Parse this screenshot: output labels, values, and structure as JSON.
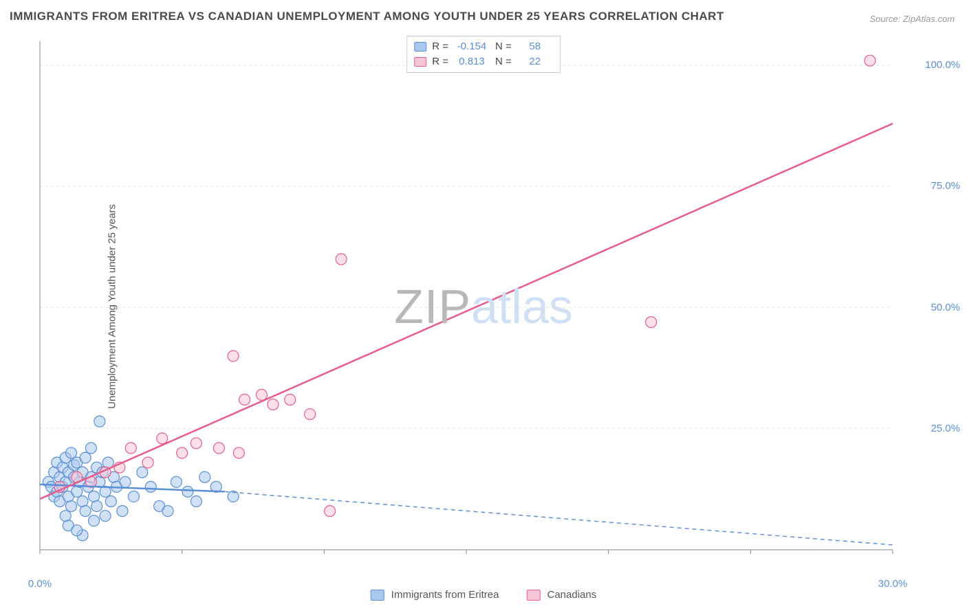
{
  "title": "IMMIGRANTS FROM ERITREA VS CANADIAN UNEMPLOYMENT AMONG YOUTH UNDER 25 YEARS CORRELATION CHART",
  "source": "Source: ZipAtlas.com",
  "ylabel": "Unemployment Among Youth under 25 years",
  "watermark": {
    "part1": "ZIP",
    "part2": "atlas"
  },
  "chart": {
    "type": "scatter",
    "background_color": "#ffffff",
    "grid_color": "#e5e5e5",
    "axis_color": "#888888",
    "tick_label_color": "#5a8fd6",
    "tick_fontsize": 15,
    "xlim": [
      0,
      30
    ],
    "ylim": [
      0,
      105
    ],
    "xticks": [
      0,
      5,
      10,
      15,
      20,
      25,
      30
    ],
    "xtick_labels": [
      "0.0%",
      "",
      "",
      "",
      "",
      "",
      "30.0%"
    ],
    "yticks": [
      25,
      50,
      75,
      100
    ],
    "ytick_labels": [
      "25.0%",
      "50.0%",
      "75.0%",
      "100.0%"
    ],
    "marker_radius": 8,
    "marker_opacity": 0.55,
    "line_width": 2.5,
    "series": [
      {
        "name": "Immigrants from Eritrea",
        "color_fill": "#a9c9ec",
        "color_stroke": "#5a8fd6",
        "r": "-0.154",
        "n": "58",
        "trend": {
          "x1": 0,
          "y1": 13.5,
          "x2": 6.5,
          "y2": 12.0,
          "dashed_extend_x2": 30,
          "dashed_extend_y2": 1.0
        },
        "points": [
          [
            0.3,
            14
          ],
          [
            0.4,
            13
          ],
          [
            0.5,
            16
          ],
          [
            0.5,
            11
          ],
          [
            0.6,
            18
          ],
          [
            0.6,
            12
          ],
          [
            0.7,
            15
          ],
          [
            0.7,
            10
          ],
          [
            0.8,
            17
          ],
          [
            0.8,
            13
          ],
          [
            0.9,
            19
          ],
          [
            0.9,
            14
          ],
          [
            1.0,
            16
          ],
          [
            1.0,
            11
          ],
          [
            1.1,
            20
          ],
          [
            1.1,
            9
          ],
          [
            1.2,
            15
          ],
          [
            1.2,
            17.5
          ],
          [
            1.3,
            18
          ],
          [
            1.3,
            12
          ],
          [
            1.4,
            14
          ],
          [
            1.5,
            16
          ],
          [
            1.5,
            10
          ],
          [
            1.6,
            8
          ],
          [
            1.6,
            19
          ],
          [
            1.7,
            13
          ],
          [
            1.8,
            21
          ],
          [
            1.8,
            15
          ],
          [
            1.9,
            11
          ],
          [
            2.0,
            17
          ],
          [
            2.0,
            9
          ],
          [
            2.1,
            14
          ],
          [
            2.2,
            16
          ],
          [
            2.3,
            12
          ],
          [
            2.4,
            18
          ],
          [
            2.5,
            10
          ],
          [
            2.6,
            15
          ],
          [
            2.7,
            13
          ],
          [
            2.9,
            8
          ],
          [
            2.1,
            26.5
          ],
          [
            1.5,
            3
          ],
          [
            1.9,
            6
          ],
          [
            2.3,
            7
          ],
          [
            3.0,
            14
          ],
          [
            3.3,
            11
          ],
          [
            3.6,
            16
          ],
          [
            3.9,
            13
          ],
          [
            4.2,
            9
          ],
          [
            4.5,
            8
          ],
          [
            4.8,
            14
          ],
          [
            5.2,
            12
          ],
          [
            5.5,
            10
          ],
          [
            5.8,
            15
          ],
          [
            6.2,
            13
          ],
          [
            6.8,
            11
          ],
          [
            1.0,
            5
          ],
          [
            1.3,
            4
          ],
          [
            0.9,
            7
          ]
        ]
      },
      {
        "name": "Canadians",
        "color_fill": "#f7c6d4",
        "color_stroke": "#e75c8d",
        "r": "0.813",
        "n": "22",
        "trend": {
          "x1": 0,
          "y1": 10.5,
          "x2": 30,
          "y2": 88.0
        },
        "points": [
          [
            0.7,
            13
          ],
          [
            1.3,
            15
          ],
          [
            1.8,
            14
          ],
          [
            2.3,
            16
          ],
          [
            2.8,
            17
          ],
          [
            3.2,
            21
          ],
          [
            3.8,
            18
          ],
          [
            4.3,
            23
          ],
          [
            5.0,
            20
          ],
          [
            5.5,
            22
          ],
          [
            6.3,
            21
          ],
          [
            7.0,
            20
          ],
          [
            7.2,
            31
          ],
          [
            7.8,
            32
          ],
          [
            8.2,
            30
          ],
          [
            8.8,
            31
          ],
          [
            9.5,
            28
          ],
          [
            10.2,
            8
          ],
          [
            6.8,
            40
          ],
          [
            10.6,
            60
          ],
          [
            21.5,
            47
          ],
          [
            29.2,
            101
          ]
        ]
      }
    ]
  },
  "legend_top": {
    "col_labels": {
      "r": "R =",
      "n": "N ="
    }
  },
  "legend_bottom": {
    "items": [
      "Immigrants from Eritrea",
      "Canadians"
    ]
  }
}
